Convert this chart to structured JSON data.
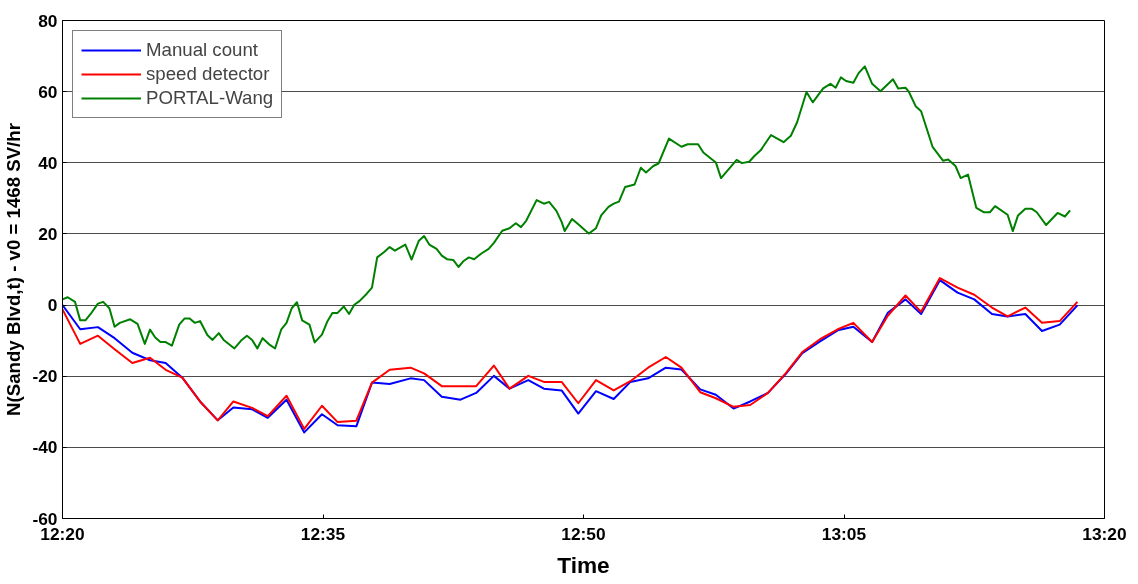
{
  "chart_data": {
    "type": "line",
    "xlabel": "Time",
    "ylabel": "N(Sandy Blvd,t) - v0 = 1468 SV/hr",
    "xlim": [
      12.333,
      13.333
    ],
    "xticks": [
      {
        "value": 12.333,
        "label": "12:20"
      },
      {
        "value": 12.583,
        "label": "12:35"
      },
      {
        "value": 12.833,
        "label": "12:50"
      },
      {
        "value": 13.083,
        "label": "13:05"
      },
      {
        "value": 13.333,
        "label": "13:20"
      }
    ],
    "ylim": [
      -60,
      80
    ],
    "yticks": [
      -60,
      -40,
      -20,
      0,
      20,
      40,
      60,
      80
    ],
    "grid": "y",
    "legend": "top left",
    "marker": "none",
    "line_style": "solid",
    "series": [
      {
        "name": "Manual count",
        "color": "#0000ff",
        "x": [
          12.333,
          12.35,
          12.367,
          12.383,
          12.4,
          12.417,
          12.432,
          12.448,
          12.465,
          12.482,
          12.497,
          12.515,
          12.53,
          12.548,
          12.565,
          12.582,
          12.597,
          12.615,
          12.63,
          12.647,
          12.667,
          12.68,
          12.697,
          12.715,
          12.73,
          12.747,
          12.762,
          12.78,
          12.795,
          12.812,
          12.828,
          12.845,
          12.862,
          12.878,
          12.895,
          12.912,
          12.927,
          12.945,
          12.96,
          12.977,
          12.993,
          13.01,
          13.027,
          13.043,
          13.06,
          13.077,
          13.092,
          13.11,
          13.125,
          13.142,
          13.157,
          13.175,
          13.192,
          13.208,
          13.225,
          13.24,
          13.257,
          13.273,
          13.29,
          13.307
        ],
        "values": [
          0,
          -6.8,
          -6.2,
          -9.3,
          -13.4,
          -15.5,
          -16.3,
          -20.4,
          -27.1,
          -32.4,
          -28.8,
          -29.3,
          -31.7,
          -26.6,
          -35.8,
          -30.7,
          -33.8,
          -34.1,
          -21.8,
          -22.2,
          -20.6,
          -21.1,
          -25.8,
          -26.6,
          -24.7,
          -19.9,
          -23.5,
          -21.1,
          -23.5,
          -24,
          -30.5,
          -24.2,
          -26.4,
          -21.6,
          -20.6,
          -17.6,
          -18.1,
          -23.7,
          -25.2,
          -29.1,
          -27.1,
          -24.7,
          -19.4,
          -13.5,
          -10.2,
          -7.1,
          -6.1,
          -10.4,
          -2.2,
          1.6,
          -2.5,
          7,
          3.5,
          1.6,
          -2.5,
          -3.2,
          -2.5,
          -7.3,
          -5.5,
          -0.1
        ]
      },
      {
        "name": "speed detector",
        "color": "#ff0000",
        "x": [
          12.333,
          12.35,
          12.367,
          12.383,
          12.4,
          12.417,
          12.432,
          12.448,
          12.465,
          12.482,
          12.497,
          12.515,
          12.53,
          12.548,
          12.565,
          12.582,
          12.597,
          12.615,
          12.63,
          12.647,
          12.667,
          12.68,
          12.697,
          12.715,
          12.73,
          12.747,
          12.762,
          12.78,
          12.795,
          12.812,
          12.828,
          12.845,
          12.862,
          12.878,
          12.895,
          12.912,
          12.927,
          12.945,
          12.96,
          12.977,
          12.993,
          13.01,
          13.027,
          13.043,
          13.06,
          13.077,
          13.092,
          13.11,
          13.125,
          13.142,
          13.157,
          13.175,
          13.192,
          13.208,
          13.225,
          13.24,
          13.257,
          13.273,
          13.29,
          13.307
        ],
        "values": [
          -1.2,
          -10.9,
          -8.6,
          -12.4,
          -16.3,
          -14.8,
          -18.2,
          -20.4,
          -27.1,
          -32.4,
          -27.1,
          -28.9,
          -31.2,
          -25.5,
          -34.8,
          -28.3,
          -32.9,
          -32.5,
          -21.8,
          -18.2,
          -17.6,
          -19.2,
          -22.8,
          -22.8,
          -22.8,
          -17,
          -23.5,
          -19.9,
          -21.6,
          -21.6,
          -27.6,
          -21.1,
          -24,
          -21.4,
          -17.6,
          -14.6,
          -17.6,
          -24.5,
          -26.2,
          -28.6,
          -28.1,
          -24.7,
          -19.2,
          -13.2,
          -9.6,
          -6.8,
          -5,
          -10.4,
          -3,
          2.7,
          -1.9,
          7.6,
          4.9,
          2.9,
          -0.7,
          -3.2,
          -0.7,
          -5,
          -4.5,
          0.9
        ]
      },
      {
        "name": "PORTAL-Wang",
        "color": "#008000",
        "x": [
          12.333,
          12.338,
          12.345,
          12.35,
          12.355,
          12.36,
          12.367,
          12.372,
          12.378,
          12.383,
          12.388,
          12.398,
          12.405,
          12.412,
          12.417,
          12.422,
          12.427,
          12.432,
          12.438,
          12.445,
          12.45,
          12.455,
          12.46,
          12.465,
          12.472,
          12.477,
          12.483,
          12.488,
          12.498,
          12.505,
          12.51,
          12.515,
          12.52,
          12.525,
          12.532,
          12.537,
          12.543,
          12.548,
          12.553,
          12.558,
          12.563,
          12.57,
          12.575,
          12.582,
          12.587,
          12.592,
          12.597,
          12.603,
          12.608,
          12.613,
          12.618,
          12.625,
          12.63,
          12.635,
          12.642,
          12.647,
          12.652,
          12.662,
          12.668,
          12.675,
          12.68,
          12.685,
          12.692,
          12.697,
          12.702,
          12.708,
          12.713,
          12.718,
          12.723,
          12.728,
          12.735,
          12.742,
          12.747,
          12.755,
          12.762,
          12.768,
          12.773,
          12.778,
          12.788,
          12.795,
          12.8,
          12.807,
          12.812,
          12.815,
          12.822,
          12.828,
          12.838,
          12.845,
          12.85,
          12.857,
          12.862,
          12.867,
          12.873,
          12.882,
          12.888,
          12.893,
          12.9,
          12.905,
          12.915,
          12.927,
          12.933,
          12.943,
          12.948,
          12.96,
          12.965,
          12.98,
          12.985,
          12.992,
          12.997,
          13.003,
          13.013,
          13.025,
          13.032,
          13.038,
          13.047,
          13.053,
          13.063,
          13.07,
          13.075,
          13.08,
          13.085,
          13.092,
          13.097,
          13.103,
          13.11,
          13.118,
          13.13,
          13.135,
          13.142,
          13.145,
          13.152,
          13.157,
          13.168,
          13.178,
          13.183,
          13.19,
          13.195,
          13.202,
          13.21,
          13.217,
          13.223,
          13.228,
          13.24,
          13.245,
          13.25,
          13.257,
          13.263,
          13.268,
          13.277,
          13.288,
          13.295,
          13.3
        ],
        "values": [
          1.6,
          2.2,
          0.9,
          -4.3,
          -4.3,
          -2.5,
          0.4,
          0.9,
          -0.9,
          -6.1,
          -5.0,
          -4.0,
          -5.3,
          -10.9,
          -6.9,
          -9.1,
          -10.4,
          -10.4,
          -11.4,
          -5.5,
          -3.8,
          -3.8,
          -5.0,
          -4.5,
          -8.4,
          -9.8,
          -7.9,
          -9.9,
          -12.2,
          -9.8,
          -8.6,
          -9.8,
          -12.2,
          -9.3,
          -11.2,
          -12.2,
          -6.8,
          -5.0,
          -0.9,
          0.8,
          -4.3,
          -5.5,
          -10.5,
          -8.3,
          -4.7,
          -2.2,
          -2.2,
          -0.4,
          -2.5,
          0.1,
          1.1,
          3.2,
          4.9,
          13.4,
          15,
          16.3,
          15.3,
          17,
          12.8,
          18.1,
          19.4,
          17,
          15.8,
          13.9,
          12.9,
          12.7,
          10.7,
          12.4,
          13.4,
          12.9,
          14.5,
          15.8,
          17.5,
          20.9,
          21.6,
          23.0,
          21.9,
          23.7,
          29.5,
          28.5,
          29.0,
          26.5,
          23.4,
          20.8,
          24.2,
          22.7,
          20.1,
          21.6,
          25.2,
          27.6,
          28.5,
          29.1,
          33.2,
          33.9,
          38.6,
          37.3,
          39.1,
          39.8,
          46.8,
          44.5,
          45.2,
          45.2,
          42.9,
          40.1,
          35.7,
          40.8,
          39.9,
          40.3,
          41.9,
          43.5,
          47.8,
          45.8,
          47.6,
          51.4,
          59.9,
          57.0,
          60.9,
          62.2,
          61.1,
          64,
          63,
          62.5,
          65.2,
          67.1,
          62.2,
          60.1,
          63.5,
          60.9,
          61.1,
          60.1,
          55.8,
          54.5,
          44.5,
          40.6,
          40.9,
          39.1,
          35.7,
          36.7,
          27.3,
          26.1,
          26.1,
          27.8,
          25.4,
          20.8,
          25.2,
          27.1,
          27.1,
          26.1,
          22.5,
          25.9,
          24.9,
          26.6
        ]
      }
    ]
  }
}
